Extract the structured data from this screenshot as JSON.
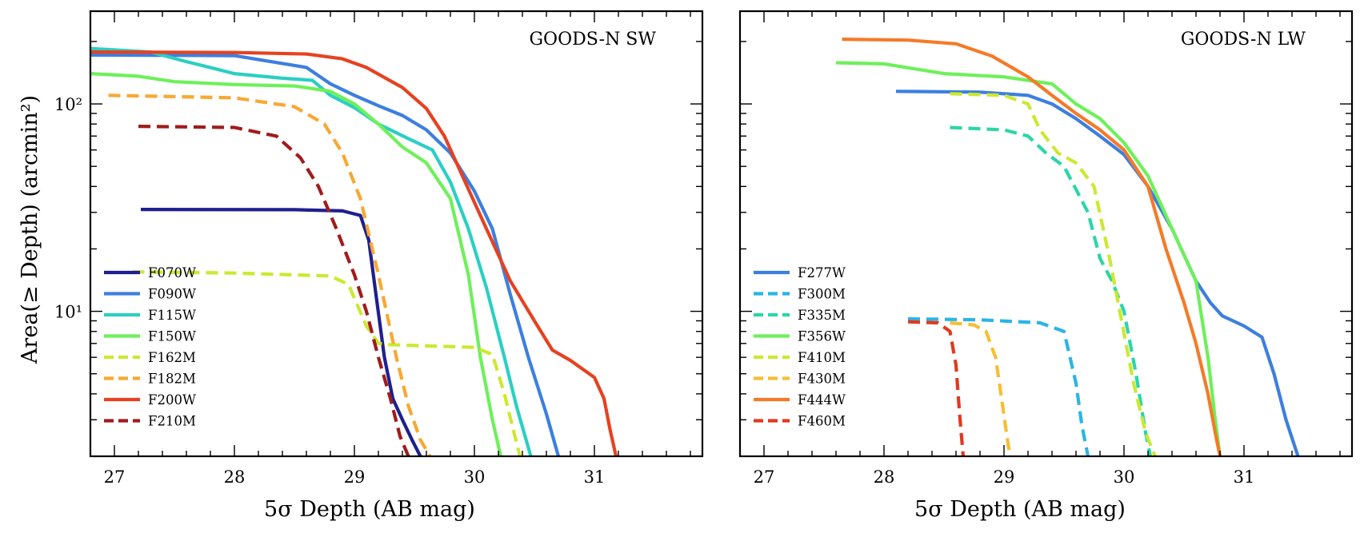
{
  "chart_data": [
    {
      "type": "line",
      "title": "GOODS-N SW",
      "xlabel": "5σ Depth (AB mag)",
      "ylabel": "Area(≥ Depth) (arcmin²)",
      "yscale": "log",
      "xlim": [
        26.8,
        31.9
      ],
      "ylim": [
        2.0,
        280
      ],
      "xticks": [
        27,
        28,
        29,
        30,
        31
      ],
      "xtick_labels": [
        "27",
        "28",
        "29",
        "30",
        "31"
      ],
      "yticks": [
        10,
        100
      ],
      "ytick_labels": [
        "10¹",
        "10²"
      ],
      "legend_position": "lower-left",
      "series": [
        {
          "name": "F070W",
          "color": "#1f1f8f",
          "dash": "solid",
          "x": [
            27.22,
            28.5,
            28.9,
            29.05,
            29.12,
            29.18,
            29.25,
            29.32,
            29.4,
            29.48,
            29.55
          ],
          "y": [
            31,
            30.9,
            30.5,
            29,
            22,
            12,
            6,
            3.8,
            3.0,
            2.4,
            2.0
          ]
        },
        {
          "name": "F090W",
          "color": "#3d7fe0",
          "dash": "solid",
          "x": [
            26.8,
            28.0,
            28.6,
            28.8,
            29.0,
            29.2,
            29.4,
            29.6,
            29.8,
            30.0,
            30.15,
            30.3,
            30.45,
            30.6,
            30.7
          ],
          "y": [
            172,
            171,
            150,
            125,
            110,
            98,
            88,
            75,
            58,
            38,
            25,
            12,
            6,
            3.2,
            2.0
          ]
        },
        {
          "name": "F115W",
          "color": "#2bcfc2",
          "dash": "solid",
          "x": [
            26.8,
            27.3,
            27.6,
            28.0,
            28.4,
            28.65,
            28.8,
            29.0,
            29.2,
            29.45,
            29.65,
            29.8,
            29.95,
            30.1,
            30.25,
            30.35,
            30.47
          ],
          "y": [
            185,
            178,
            160,
            140,
            133,
            130,
            110,
            96,
            80,
            68,
            60,
            42,
            25,
            13,
            6,
            3.5,
            2.0
          ]
        },
        {
          "name": "F150W",
          "color": "#6ef05a",
          "dash": "solid",
          "x": [
            26.8,
            27.2,
            27.5,
            28.0,
            28.5,
            28.8,
            29.0,
            29.2,
            29.4,
            29.6,
            29.8,
            29.95,
            30.05,
            30.15,
            30.22
          ],
          "y": [
            140,
            136,
            128,
            124,
            122,
            115,
            100,
            80,
            62,
            52,
            35,
            15,
            6,
            3.0,
            2.0
          ]
        },
        {
          "name": "F162M",
          "color": "#cde830",
          "dash": "dash",
          "x": [
            27.15,
            28.0,
            28.8,
            28.95,
            29.1,
            29.2,
            29.3,
            30.0,
            30.15,
            30.25,
            30.33,
            30.38
          ],
          "y": [
            15.5,
            15.3,
            14.8,
            13.5,
            8.5,
            7.0,
            6.9,
            6.7,
            6.2,
            4.0,
            2.6,
            2.0
          ]
        },
        {
          "name": "F182M",
          "color": "#f8a832",
          "dash": "dash",
          "x": [
            26.95,
            28.0,
            28.5,
            28.75,
            28.9,
            29.05,
            29.2,
            29.35,
            29.45,
            29.55,
            29.63
          ],
          "y": [
            110,
            107,
            97,
            80,
            58,
            35,
            15,
            6,
            3.5,
            2.4,
            2.0
          ]
        },
        {
          "name": "F200W",
          "color": "#e64221",
          "dash": "solid",
          "x": [
            26.8,
            28.0,
            28.6,
            28.9,
            29.1,
            29.4,
            29.6,
            29.75,
            29.9,
            30.1,
            30.3,
            30.5,
            30.65,
            30.8,
            31.0,
            31.08,
            31.13,
            31.18
          ],
          "y": [
            178,
            177,
            174,
            165,
            150,
            120,
            95,
            70,
            45,
            25,
            14,
            9,
            6.5,
            5.8,
            4.8,
            3.8,
            2.7,
            2.0
          ]
        },
        {
          "name": "F210M",
          "color": "#a01c1c",
          "dash": "dash",
          "x": [
            27.2,
            28.0,
            28.35,
            28.55,
            28.7,
            28.85,
            29.0,
            29.1,
            29.2,
            29.3,
            29.38,
            29.45
          ],
          "y": [
            78,
            77,
            70,
            55,
            40,
            25,
            15,
            10,
            6,
            3.8,
            2.5,
            2.0
          ]
        }
      ]
    },
    {
      "type": "line",
      "title": "GOODS-N LW",
      "xlabel": "5σ Depth (AB mag)",
      "ylabel": "",
      "yscale": "log",
      "xlim": [
        26.8,
        31.9
      ],
      "ylim": [
        2.0,
        280
      ],
      "xticks": [
        27,
        28,
        29,
        30,
        31
      ],
      "xtick_labels": [
        "27",
        "28",
        "29",
        "30",
        "31"
      ],
      "yticks": [
        10,
        100
      ],
      "ytick_labels": [
        "",
        ""
      ],
      "legend_position": "lower-left",
      "series": [
        {
          "name": "F277W",
          "color": "#3d7fe0",
          "dash": "solid",
          "x": [
            28.1,
            28.8,
            29.2,
            29.4,
            29.6,
            29.8,
            30.0,
            30.2,
            30.4,
            30.6,
            30.72,
            30.82,
            31.0,
            31.15,
            31.25,
            31.35,
            31.45
          ],
          "y": [
            115,
            114,
            110,
            100,
            85,
            70,
            57,
            40,
            25,
            14,
            11,
            9.5,
            8.5,
            7.5,
            5,
            3,
            2.0
          ]
        },
        {
          "name": "F300M",
          "color": "#2ab5e8",
          "dash": "dash",
          "x": [
            28.2,
            28.8,
            29.3,
            29.5,
            29.6,
            29.65,
            29.7
          ],
          "y": [
            9.2,
            9.1,
            8.8,
            8.0,
            4.5,
            2.8,
            2.0
          ]
        },
        {
          "name": "F335M",
          "color": "#2bd6a8",
          "dash": "dash",
          "x": [
            28.55,
            29.0,
            29.2,
            29.35,
            29.5,
            29.7,
            29.8,
            29.9,
            30.0,
            30.1,
            30.18,
            30.22
          ],
          "y": [
            77,
            75,
            70,
            58,
            50,
            30,
            18,
            14,
            10,
            5,
            2.6,
            2.0
          ]
        },
        {
          "name": "F356W",
          "color": "#6ef05a",
          "dash": "solid",
          "x": [
            27.6,
            28.0,
            28.5,
            29.0,
            29.4,
            29.6,
            29.8,
            30.0,
            30.2,
            30.4,
            30.6,
            30.7,
            30.76,
            30.8
          ],
          "y": [
            158,
            156,
            140,
            135,
            125,
            100,
            85,
            65,
            45,
            25,
            14,
            6,
            3,
            2.0
          ]
        },
        {
          "name": "F410M",
          "color": "#cde830",
          "dash": "dash",
          "x": [
            28.55,
            29.0,
            29.2,
            29.3,
            29.45,
            29.6,
            29.75,
            29.88,
            29.98,
            30.08,
            30.18,
            30.26
          ],
          "y": [
            112,
            110,
            100,
            75,
            58,
            52,
            40,
            18,
            9,
            4.5,
            2.6,
            2.0
          ]
        },
        {
          "name": "F430M",
          "color": "#f6be35",
          "dash": "dash",
          "x": [
            28.55,
            28.75,
            28.85,
            28.93,
            28.98,
            29.02,
            29.05
          ],
          "y": [
            8.8,
            8.6,
            8.0,
            6.0,
            3.8,
            2.6,
            2.0
          ]
        },
        {
          "name": "F444W",
          "color": "#f57a28",
          "dash": "solid",
          "x": [
            27.65,
            28.2,
            28.6,
            28.9,
            29.2,
            29.4,
            29.6,
            29.8,
            30.0,
            30.2,
            30.35,
            30.5,
            30.6,
            30.7,
            30.76,
            30.8
          ],
          "y": [
            205,
            203,
            195,
            170,
            135,
            110,
            90,
            75,
            60,
            40,
            20,
            11,
            7,
            4,
            2.6,
            2.0
          ]
        },
        {
          "name": "F460M",
          "color": "#e03a1e",
          "dash": "dash",
          "x": [
            28.2,
            28.45,
            28.55,
            28.6,
            28.63,
            28.66
          ],
          "y": [
            8.9,
            8.8,
            8.0,
            5.5,
            3.2,
            2.0
          ]
        }
      ]
    }
  ]
}
